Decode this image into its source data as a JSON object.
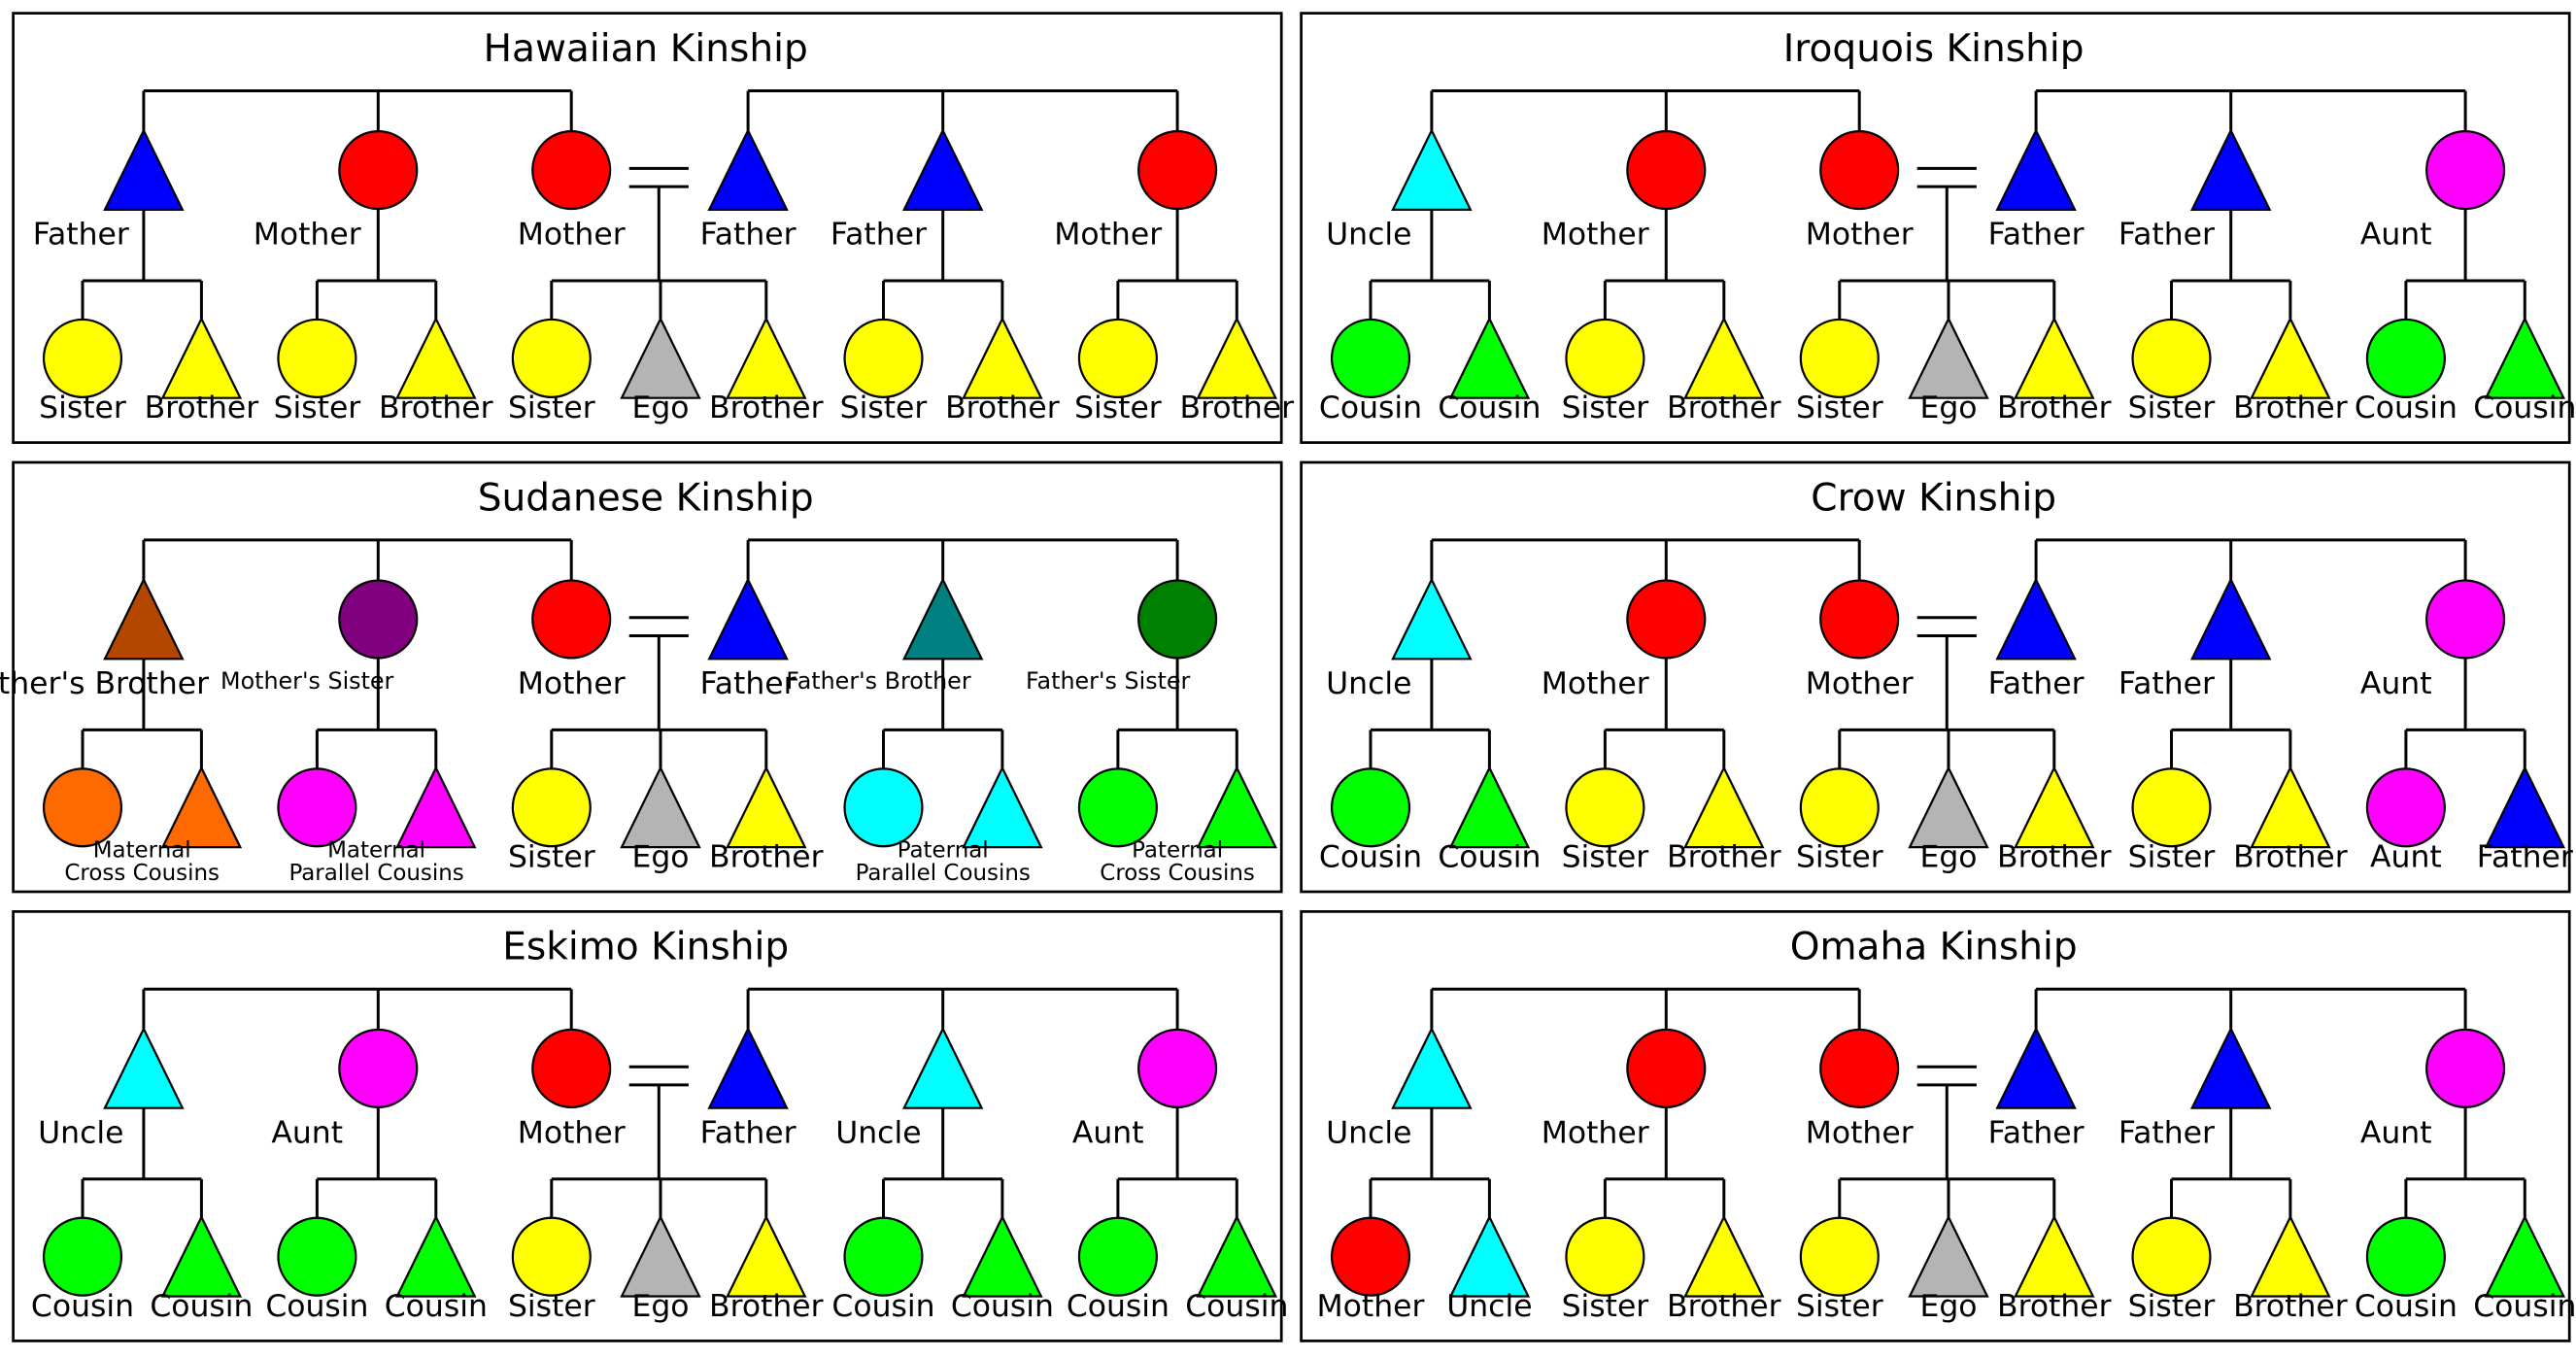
{
  "colors": {
    "red": "#ff0000",
    "blue": "#0000ff",
    "yellow": "#ffff00",
    "gray": "#b4b4b4",
    "green": "#00ff00",
    "cyan": "#00ffff",
    "magenta": "#ff00ff",
    "brown": "#b34700",
    "purple": "#800080",
    "teal": "#008080",
    "darkgreen": "#008000",
    "orange": "#ff6a00"
  },
  "panels": [
    {
      "title": "Hawaiian Kinship",
      "parents": [
        {
          "label": "Father",
          "shape": "triangle",
          "color": "blue"
        },
        {
          "label": "Mother",
          "shape": "circle",
          "color": "red"
        },
        {
          "label": "Mother",
          "shape": "circle",
          "color": "red"
        },
        {
          "label": "Father",
          "shape": "triangle",
          "color": "blue"
        },
        {
          "label": "Father",
          "shape": "triangle",
          "color": "blue"
        },
        {
          "label": "Mother",
          "shape": "circle",
          "color": "red"
        }
      ],
      "children": [
        [
          {
            "label": "Sister",
            "shape": "circle",
            "color": "yellow"
          },
          {
            "label": "Brother",
            "shape": "triangle",
            "color": "yellow"
          }
        ],
        [
          {
            "label": "Sister",
            "shape": "circle",
            "color": "yellow"
          },
          {
            "label": "Brother",
            "shape": "triangle",
            "color": "yellow"
          }
        ],
        [
          {
            "label": "Sister",
            "shape": "circle",
            "color": "yellow"
          },
          {
            "label": "Ego",
            "shape": "triangle",
            "color": "gray"
          },
          {
            "label": "Brother",
            "shape": "triangle",
            "color": "yellow"
          }
        ],
        [
          {
            "label": "Sister",
            "shape": "circle",
            "color": "yellow"
          },
          {
            "label": "Brother",
            "shape": "triangle",
            "color": "yellow"
          }
        ],
        [
          {
            "label": "Sister",
            "shape": "circle",
            "color": "yellow"
          },
          {
            "label": "Brother",
            "shape": "triangle",
            "color": "yellow"
          }
        ]
      ]
    },
    {
      "title": "Iroquois Kinship",
      "parents": [
        {
          "label": "Uncle",
          "shape": "triangle",
          "color": "cyan"
        },
        {
          "label": "Mother",
          "shape": "circle",
          "color": "red"
        },
        {
          "label": "Mother",
          "shape": "circle",
          "color": "red"
        },
        {
          "label": "Father",
          "shape": "triangle",
          "color": "blue"
        },
        {
          "label": "Father",
          "shape": "triangle",
          "color": "blue"
        },
        {
          "label": "Aunt",
          "shape": "circle",
          "color": "magenta"
        }
      ],
      "children": [
        [
          {
            "label": "Cousin",
            "shape": "circle",
            "color": "green"
          },
          {
            "label": "Cousin",
            "shape": "triangle",
            "color": "green"
          }
        ],
        [
          {
            "label": "Sister",
            "shape": "circle",
            "color": "yellow"
          },
          {
            "label": "Brother",
            "shape": "triangle",
            "color": "yellow"
          }
        ],
        [
          {
            "label": "Sister",
            "shape": "circle",
            "color": "yellow"
          },
          {
            "label": "Ego",
            "shape": "triangle",
            "color": "gray"
          },
          {
            "label": "Brother",
            "shape": "triangle",
            "color": "yellow"
          }
        ],
        [
          {
            "label": "Sister",
            "shape": "circle",
            "color": "yellow"
          },
          {
            "label": "Brother",
            "shape": "triangle",
            "color": "yellow"
          }
        ],
        [
          {
            "label": "Cousin",
            "shape": "circle",
            "color": "green"
          },
          {
            "label": "Cousin",
            "shape": "triangle",
            "color": "green"
          }
        ]
      ]
    },
    {
      "title": "Sudanese Kinship",
      "parents": [
        {
          "label": "Mother's Brother",
          "shape": "triangle",
          "color": "brown"
        },
        {
          "label": "Mother's Sister",
          "shape": "circle",
          "color": "purple",
          "small": true
        },
        {
          "label": "Mother",
          "shape": "circle",
          "color": "red"
        },
        {
          "label": "Father",
          "shape": "triangle",
          "color": "blue"
        },
        {
          "label": "Father's Brother",
          "shape": "triangle",
          "color": "teal",
          "small": true
        },
        {
          "label": "Father's Sister",
          "shape": "circle",
          "color": "darkgreen",
          "small": true
        }
      ],
      "children": [
        [
          {
            "label": "",
            "shape": "circle",
            "color": "orange"
          },
          {
            "label": "",
            "shape": "triangle",
            "color": "orange"
          }
        ],
        [
          {
            "label": "",
            "shape": "circle",
            "color": "magenta"
          },
          {
            "label": "",
            "shape": "triangle",
            "color": "magenta"
          }
        ],
        [
          {
            "label": "Sister",
            "shape": "circle",
            "color": "yellow"
          },
          {
            "label": "Ego",
            "shape": "triangle",
            "color": "gray"
          },
          {
            "label": "Brother",
            "shape": "triangle",
            "color": "yellow"
          }
        ],
        [
          {
            "label": "",
            "shape": "circle",
            "color": "cyan"
          },
          {
            "label": "",
            "shape": "triangle",
            "color": "cyan"
          }
        ],
        [
          {
            "label": "",
            "shape": "circle",
            "color": "green"
          },
          {
            "label": "",
            "shape": "triangle",
            "color": "green"
          }
        ]
      ],
      "group_labels": [
        [
          "Maternal",
          "Cross Cousins"
        ],
        [
          "Maternal",
          "Parallel Cousins"
        ],
        null,
        [
          "Paternal",
          "Parallel Cousins"
        ],
        [
          "Paternal",
          "Cross Cousins"
        ]
      ]
    },
    {
      "title": "Crow Kinship",
      "parents": [
        {
          "label": "Uncle",
          "shape": "triangle",
          "color": "cyan"
        },
        {
          "label": "Mother",
          "shape": "circle",
          "color": "red"
        },
        {
          "label": "Mother",
          "shape": "circle",
          "color": "red"
        },
        {
          "label": "Father",
          "shape": "triangle",
          "color": "blue"
        },
        {
          "label": "Father",
          "shape": "triangle",
          "color": "blue"
        },
        {
          "label": "Aunt",
          "shape": "circle",
          "color": "magenta"
        }
      ],
      "children": [
        [
          {
            "label": "Cousin",
            "shape": "circle",
            "color": "green"
          },
          {
            "label": "Cousin",
            "shape": "triangle",
            "color": "green"
          }
        ],
        [
          {
            "label": "Sister",
            "shape": "circle",
            "color": "yellow"
          },
          {
            "label": "Brother",
            "shape": "triangle",
            "color": "yellow"
          }
        ],
        [
          {
            "label": "Sister",
            "shape": "circle",
            "color": "yellow"
          },
          {
            "label": "Ego",
            "shape": "triangle",
            "color": "gray"
          },
          {
            "label": "Brother",
            "shape": "triangle",
            "color": "yellow"
          }
        ],
        [
          {
            "label": "Sister",
            "shape": "circle",
            "color": "yellow"
          },
          {
            "label": "Brother",
            "shape": "triangle",
            "color": "yellow"
          }
        ],
        [
          {
            "label": "Aunt",
            "shape": "circle",
            "color": "magenta"
          },
          {
            "label": "Father",
            "shape": "triangle",
            "color": "blue"
          }
        ]
      ]
    },
    {
      "title": "Eskimo Kinship",
      "parents": [
        {
          "label": "Uncle",
          "shape": "triangle",
          "color": "cyan"
        },
        {
          "label": "Aunt",
          "shape": "circle",
          "color": "magenta"
        },
        {
          "label": "Mother",
          "shape": "circle",
          "color": "red"
        },
        {
          "label": "Father",
          "shape": "triangle",
          "color": "blue"
        },
        {
          "label": "Uncle",
          "shape": "triangle",
          "color": "cyan"
        },
        {
          "label": "Aunt",
          "shape": "circle",
          "color": "magenta"
        }
      ],
      "children": [
        [
          {
            "label": "Cousin",
            "shape": "circle",
            "color": "green"
          },
          {
            "label": "Cousin",
            "shape": "triangle",
            "color": "green"
          }
        ],
        [
          {
            "label": "Cousin",
            "shape": "circle",
            "color": "green"
          },
          {
            "label": "Cousin",
            "shape": "triangle",
            "color": "green"
          }
        ],
        [
          {
            "label": "Sister",
            "shape": "circle",
            "color": "yellow"
          },
          {
            "label": "Ego",
            "shape": "triangle",
            "color": "gray"
          },
          {
            "label": "Brother",
            "shape": "triangle",
            "color": "yellow"
          }
        ],
        [
          {
            "label": "Cousin",
            "shape": "circle",
            "color": "green"
          },
          {
            "label": "Cousin",
            "shape": "triangle",
            "color": "green"
          }
        ],
        [
          {
            "label": "Cousin",
            "shape": "circle",
            "color": "green"
          },
          {
            "label": "Cousin",
            "shape": "triangle",
            "color": "green"
          }
        ]
      ]
    },
    {
      "title": "Omaha Kinship",
      "parents": [
        {
          "label": "Uncle",
          "shape": "triangle",
          "color": "cyan"
        },
        {
          "label": "Mother",
          "shape": "circle",
          "color": "red"
        },
        {
          "label": "Mother",
          "shape": "circle",
          "color": "red"
        },
        {
          "label": "Father",
          "shape": "triangle",
          "color": "blue"
        },
        {
          "label": "Father",
          "shape": "triangle",
          "color": "blue"
        },
        {
          "label": "Aunt",
          "shape": "circle",
          "color": "magenta"
        }
      ],
      "children": [
        [
          {
            "label": "Mother",
            "shape": "circle",
            "color": "red"
          },
          {
            "label": "Uncle",
            "shape": "triangle",
            "color": "cyan"
          }
        ],
        [
          {
            "label": "Sister",
            "shape": "circle",
            "color": "yellow"
          },
          {
            "label": "Brother",
            "shape": "triangle",
            "color": "yellow"
          }
        ],
        [
          {
            "label": "Sister",
            "shape": "circle",
            "color": "yellow"
          },
          {
            "label": "Ego",
            "shape": "triangle",
            "color": "gray"
          },
          {
            "label": "Brother",
            "shape": "triangle",
            "color": "yellow"
          }
        ],
        [
          {
            "label": "Sister",
            "shape": "circle",
            "color": "yellow"
          },
          {
            "label": "Brother",
            "shape": "triangle",
            "color": "yellow"
          }
        ],
        [
          {
            "label": "Cousin",
            "shape": "circle",
            "color": "green"
          },
          {
            "label": "Cousin",
            "shape": "triangle",
            "color": "green"
          }
        ]
      ]
    }
  ]
}
